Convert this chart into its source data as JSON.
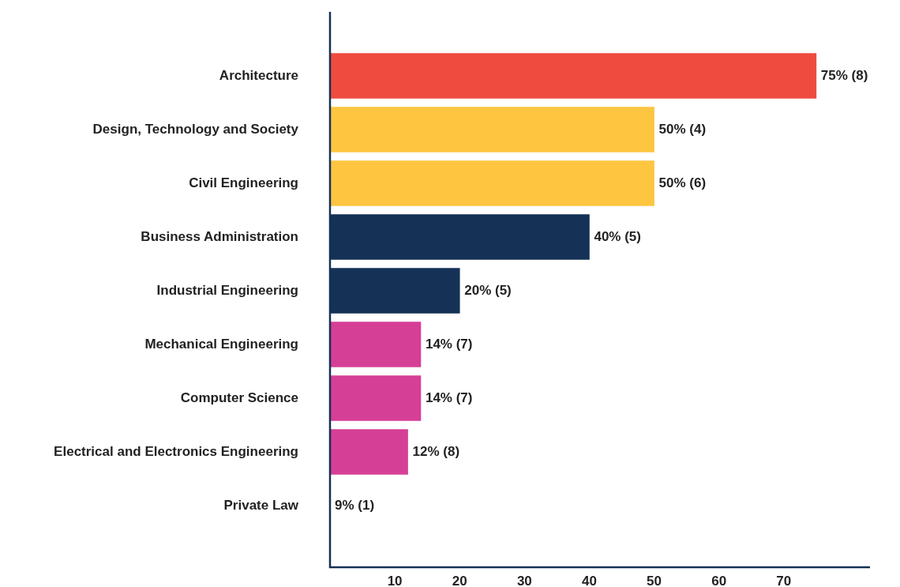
{
  "chart_data": {
    "type": "bar",
    "orientation": "horizontal",
    "categories": [
      "Architecture",
      "Design, Technology and Society",
      "Civil Engineering",
      "Business Administration",
      "Industrial Engineering",
      "Mechanical Engineering",
      "Computer Science",
      "Electrical and Electronics Engineering",
      "Private Law"
    ],
    "values": [
      75,
      50,
      50,
      40,
      20,
      14,
      14,
      12,
      null
    ],
    "colors": [
      "#ef4b3f",
      "#fdc540",
      "#fdc540",
      "#153156",
      "#153156",
      "#d63f96",
      "#d63f96",
      "#d63f96",
      "#d63f96"
    ],
    "value_labels": [
      "75% (8)",
      "50% (4)",
      "50% (6)",
      "40% (5)",
      "20% (5)",
      "14% (7)",
      "14% (7)",
      "12% (8)",
      "9% (1)"
    ],
    "xlim": [
      0,
      83.3
    ],
    "xticks": [
      10,
      20,
      30,
      40,
      50,
      60,
      70
    ],
    "grid": false,
    "legend": false
  }
}
